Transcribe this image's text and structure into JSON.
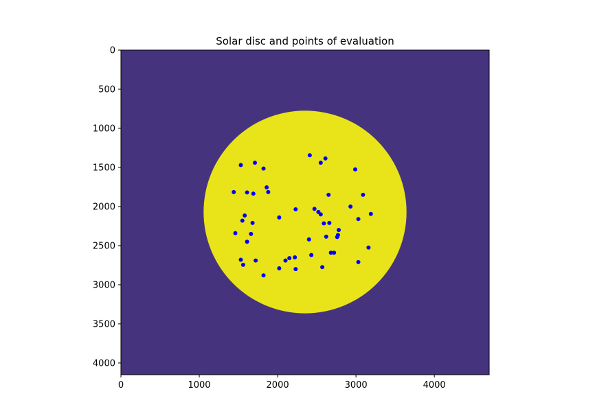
{
  "chart_data": {
    "type": "scatter",
    "title": "Solar disc and points of evaluation",
    "xlabel": "",
    "ylabel": "",
    "xlim": [
      0,
      4700
    ],
    "ylim": [
      4150,
      0
    ],
    "x_ticks": [
      0,
      1000,
      2000,
      3000,
      4000
    ],
    "y_ticks": [
      0,
      500,
      1000,
      1500,
      2000,
      2500,
      3000,
      3500,
      4000
    ],
    "background_color": "#46337e",
    "disc": {
      "center": [
        2350,
        2070
      ],
      "radius": 1295,
      "color": "#e8e419"
    },
    "points_color": "#0000ff",
    "points": [
      [
        1530,
        1470
      ],
      [
        1710,
        1440
      ],
      [
        1820,
        1515
      ],
      [
        2410,
        1345
      ],
      [
        2550,
        1440
      ],
      [
        2610,
        1385
      ],
      [
        2990,
        1525
      ],
      [
        1440,
        1815
      ],
      [
        1610,
        1820
      ],
      [
        1690,
        1835
      ],
      [
        1860,
        1755
      ],
      [
        1880,
        1815
      ],
      [
        2650,
        1850
      ],
      [
        3090,
        1850
      ],
      [
        2470,
        2030
      ],
      [
        2230,
        2035
      ],
      [
        2520,
        2070
      ],
      [
        2550,
        2100
      ],
      [
        2930,
        2000
      ],
      [
        3030,
        2160
      ],
      [
        3190,
        2095
      ],
      [
        1580,
        2115
      ],
      [
        1550,
        2180
      ],
      [
        1680,
        2210
      ],
      [
        2020,
        2140
      ],
      [
        2590,
        2215
      ],
      [
        2660,
        2210
      ],
      [
        2780,
        2300
      ],
      [
        1460,
        2340
      ],
      [
        1660,
        2350
      ],
      [
        1610,
        2450
      ],
      [
        2400,
        2420
      ],
      [
        2620,
        2385
      ],
      [
        2760,
        2390
      ],
      [
        2770,
        2365
      ],
      [
        2680,
        2590
      ],
      [
        2720,
        2590
      ],
      [
        2430,
        2620
      ],
      [
        3160,
        2525
      ],
      [
        1530,
        2680
      ],
      [
        1720,
        2690
      ],
      [
        2100,
        2690
      ],
      [
        2150,
        2660
      ],
      [
        2220,
        2650
      ],
      [
        1560,
        2745
      ],
      [
        2020,
        2790
      ],
      [
        2230,
        2800
      ],
      [
        2570,
        2775
      ],
      [
        3030,
        2710
      ],
      [
        1820,
        2880
      ]
    ]
  }
}
